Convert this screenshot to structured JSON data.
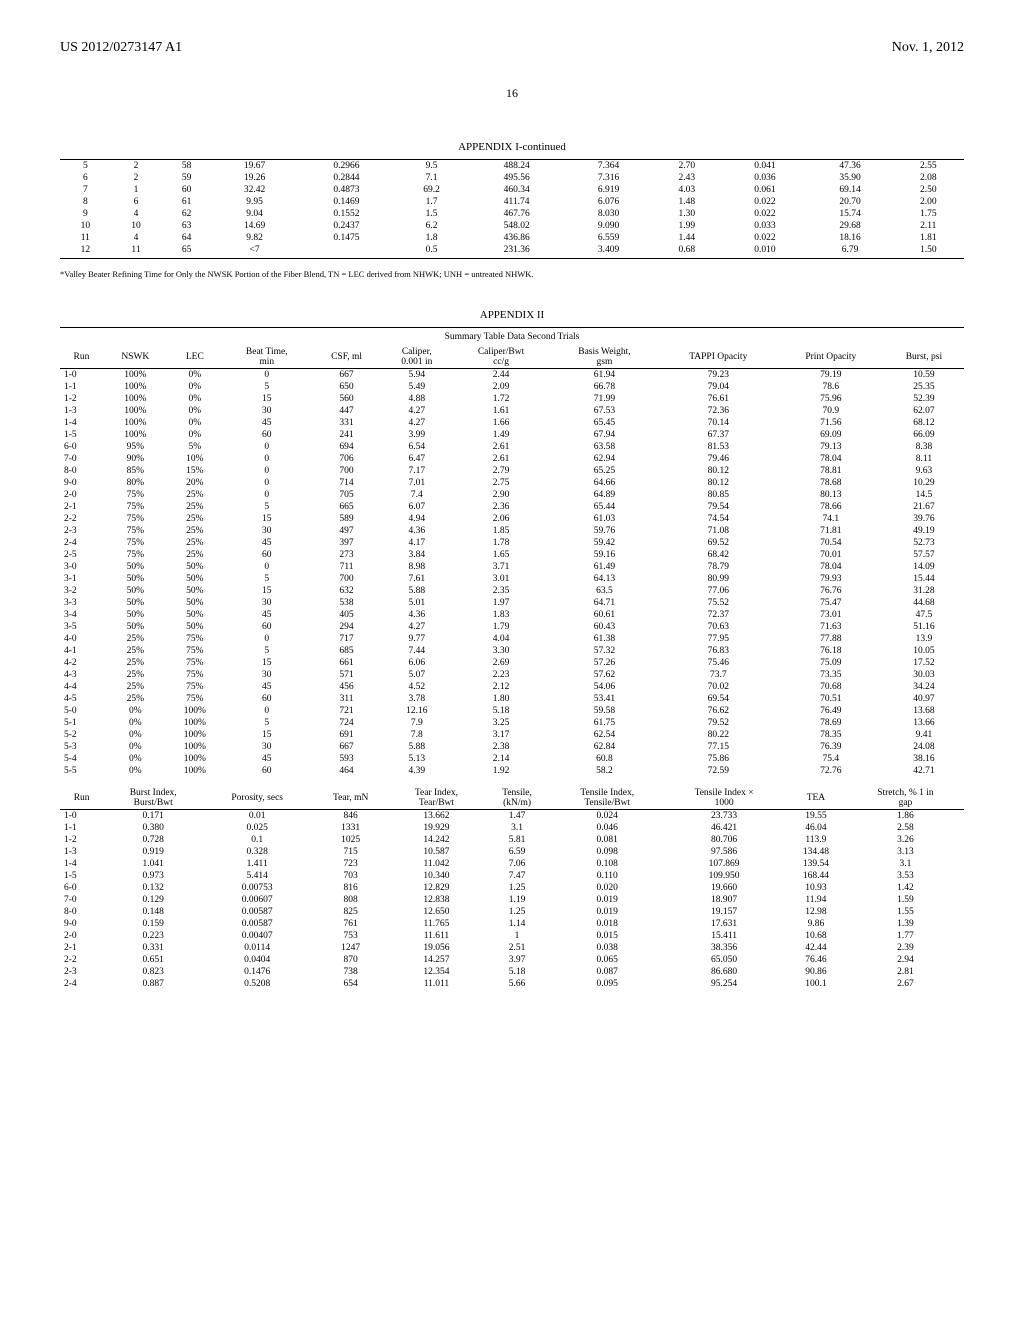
{
  "header": {
    "pub": "US 2012/0273147 A1",
    "date": "Nov. 1, 2012"
  },
  "page_number": "16",
  "appendix1": {
    "title": "APPENDIX I-continued",
    "rows": [
      [
        "5",
        "2",
        "58",
        "19.67",
        "0.2966",
        "9.5",
        "488.24",
        "7.364",
        "2.70",
        "0.041",
        "47.36",
        "2.55"
      ],
      [
        "6",
        "2",
        "59",
        "19.26",
        "0.2844",
        "7.1",
        "495.56",
        "7.316",
        "2.43",
        "0.036",
        "35.90",
        "2.08"
      ],
      [
        "7",
        "1",
        "60",
        "32.42",
        "0.4873",
        "69.2",
        "460.34",
        "6.919",
        "4.03",
        "0.061",
        "69.14",
        "2.50"
      ],
      [
        "8",
        "6",
        "61",
        "9.95",
        "0.1469",
        "1.7",
        "411.74",
        "6.076",
        "1.48",
        "0.022",
        "20.70",
        "2.00"
      ],
      [
        "9",
        "4",
        "62",
        "9.04",
        "0.1552",
        "1.5",
        "467.76",
        "8.030",
        "1.30",
        "0.022",
        "15.74",
        "1.75"
      ],
      [
        "10",
        "10",
        "63",
        "14.69",
        "0.2437",
        "6.2",
        "548.02",
        "9.090",
        "1.99",
        "0.033",
        "29.68",
        "2.11"
      ],
      [
        "11",
        "4",
        "64",
        "9.82",
        "0.1475",
        "1.8",
        "436.86",
        "6.559",
        "1.44",
        "0.022",
        "18.16",
        "1.81"
      ],
      [
        "12",
        "11",
        "65",
        "<7",
        "",
        "0.5",
        "231.36",
        "3.409",
        "0.68",
        "0.010",
        "6.79",
        "1.50"
      ]
    ],
    "footnote": "*Valley Beater Refining Time for Only the NWSK Portion of the Fiber Blend, TN = LEC derived from NHWK; UNH = untreated NHWK."
  },
  "appendix2": {
    "title": "APPENDIX II",
    "subtitle": "Summary Table Data Second Trials",
    "columns_a": [
      "Run",
      "NSWK",
      "LEC",
      "Beat Time,\nmin",
      "CSF, ml",
      "Caliper,\n0.001 in",
      "Caliper/Bwt\ncc/g",
      "Basis Weight,\ngsm",
      "TAPPI Opacity",
      "Print Opacity",
      "Burst, psi"
    ],
    "rows_a": [
      [
        "1-0",
        "100%",
        "0%",
        "0",
        "667",
        "5.94",
        "2.44",
        "61.94",
        "79.23",
        "79.19",
        "10.59"
      ],
      [
        "1-1",
        "100%",
        "0%",
        "5",
        "650",
        "5.49",
        "2.09",
        "66.78",
        "79.04",
        "78.6",
        "25.35"
      ],
      [
        "1-2",
        "100%",
        "0%",
        "15",
        "560",
        "4.88",
        "1.72",
        "71.99",
        "76.61",
        "75.96",
        "52.39"
      ],
      [
        "1-3",
        "100%",
        "0%",
        "30",
        "447",
        "4.27",
        "1.61",
        "67.53",
        "72.36",
        "70.9",
        "62.07"
      ],
      [
        "1-4",
        "100%",
        "0%",
        "45",
        "331",
        "4.27",
        "1.66",
        "65.45",
        "70.14",
        "71.56",
        "68.12"
      ],
      [
        "1-5",
        "100%",
        "0%",
        "60",
        "241",
        "3.99",
        "1.49",
        "67.94",
        "67.37",
        "69.09",
        "66.09"
      ],
      [
        "6-0",
        "95%",
        "5%",
        "0",
        "694",
        "6.54",
        "2.61",
        "63.58",
        "81.53",
        "79.13",
        "8.38"
      ],
      [
        "7-0",
        "90%",
        "10%",
        "0",
        "706",
        "6.47",
        "2.61",
        "62.94",
        "79.46",
        "78.04",
        "8.11"
      ],
      [
        "8-0",
        "85%",
        "15%",
        "0",
        "700",
        "7.17",
        "2.79",
        "65.25",
        "80.12",
        "78.81",
        "9.63"
      ],
      [
        "9-0",
        "80%",
        "20%",
        "0",
        "714",
        "7.01",
        "2.75",
        "64.66",
        "80.12",
        "78.68",
        "10.29"
      ],
      [
        "2-0",
        "75%",
        "25%",
        "0",
        "705",
        "7.4",
        "2.90",
        "64.89",
        "80.85",
        "80.13",
        "14.5"
      ],
      [
        "2-1",
        "75%",
        "25%",
        "5",
        "665",
        "6.07",
        "2.36",
        "65.44",
        "79.54",
        "78.66",
        "21.67"
      ],
      [
        "2-2",
        "75%",
        "25%",
        "15",
        "589",
        "4.94",
        "2.06",
        "61.03",
        "74.54",
        "74.1",
        "39.76"
      ],
      [
        "2-3",
        "75%",
        "25%",
        "30",
        "497",
        "4.36",
        "1.85",
        "59.76",
        "71.08",
        "71.81",
        "49.19"
      ],
      [
        "2-4",
        "75%",
        "25%",
        "45",
        "397",
        "4.17",
        "1.78",
        "59.42",
        "69.52",
        "70.54",
        "52.73"
      ],
      [
        "2-5",
        "75%",
        "25%",
        "60",
        "273",
        "3.84",
        "1.65",
        "59.16",
        "68.42",
        "70.01",
        "57.57"
      ],
      [
        "3-0",
        "50%",
        "50%",
        "0",
        "711",
        "8.98",
        "3.71",
        "61.49",
        "78.79",
        "78.04",
        "14.09"
      ],
      [
        "3-1",
        "50%",
        "50%",
        "5",
        "700",
        "7.61",
        "3.01",
        "64.13",
        "80.99",
        "79.93",
        "15.44"
      ],
      [
        "3-2",
        "50%",
        "50%",
        "15",
        "632",
        "5.88",
        "2.35",
        "63.5",
        "77.06",
        "76.76",
        "31.28"
      ],
      [
        "3-3",
        "50%",
        "50%",
        "30",
        "538",
        "5.01",
        "1.97",
        "64.71",
        "75.52",
        "75.47",
        "44.68"
      ],
      [
        "3-4",
        "50%",
        "50%",
        "45",
        "405",
        "4.36",
        "1.83",
        "60.61",
        "72.37",
        "73.01",
        "47.5"
      ],
      [
        "3-5",
        "50%",
        "50%",
        "60",
        "294",
        "4.27",
        "1.79",
        "60.43",
        "70.63",
        "71.63",
        "51.16"
      ],
      [
        "4-0",
        "25%",
        "75%",
        "0",
        "717",
        "9.77",
        "4.04",
        "61.38",
        "77.95",
        "77.88",
        "13.9"
      ],
      [
        "4-1",
        "25%",
        "75%",
        "5",
        "685",
        "7.44",
        "3.30",
        "57.32",
        "76.83",
        "76.18",
        "10.05"
      ],
      [
        "4-2",
        "25%",
        "75%",
        "15",
        "661",
        "6.06",
        "2.69",
        "57.26",
        "75.46",
        "75.09",
        "17.52"
      ],
      [
        "4-3",
        "25%",
        "75%",
        "30",
        "571",
        "5.07",
        "2.23",
        "57.62",
        "73.7",
        "73.35",
        "30.03"
      ],
      [
        "4-4",
        "25%",
        "75%",
        "45",
        "456",
        "4.52",
        "2.12",
        "54.06",
        "70.02",
        "70.68",
        "34.24"
      ],
      [
        "4-5",
        "25%",
        "75%",
        "60",
        "311",
        "3.78",
        "1.80",
        "53.41",
        "69.54",
        "70.51",
        "40.97"
      ],
      [
        "5-0",
        "0%",
        "100%",
        "0",
        "721",
        "12.16",
        "5.18",
        "59.58",
        "76.62",
        "76.49",
        "13.68"
      ],
      [
        "5-1",
        "0%",
        "100%",
        "5",
        "724",
        "7.9",
        "3.25",
        "61.75",
        "79.52",
        "78.69",
        "13.66"
      ],
      [
        "5-2",
        "0%",
        "100%",
        "15",
        "691",
        "7.8",
        "3.17",
        "62.54",
        "80.22",
        "78.35",
        "9.41"
      ],
      [
        "5-3",
        "0%",
        "100%",
        "30",
        "667",
        "5.88",
        "2.38",
        "62.84",
        "77.15",
        "76.39",
        "24.08"
      ],
      [
        "5-4",
        "0%",
        "100%",
        "45",
        "593",
        "5.13",
        "2.14",
        "60.8",
        "75.86",
        "75.4",
        "38.16"
      ],
      [
        "5-5",
        "0%",
        "100%",
        "60",
        "464",
        "4.39",
        "1.92",
        "58.2",
        "72.59",
        "72.76",
        "42.71"
      ]
    ],
    "columns_b": [
      "Run",
      "Burst Index,\nBurst/Bwt",
      "Porosity, secs",
      "Tear, mN",
      "Tear Index,\nTear/Bwt",
      "Tensile,\n(kN/m)",
      "Tensile Index,\nTensile/Bwt",
      "Tensile Index ×\n1000",
      "TEA",
      "Stretch, % 1 in\ngap"
    ],
    "rows_b": [
      [
        "1-0",
        "0.171",
        "0.01",
        "846",
        "13.662",
        "1.47",
        "0.024",
        "23.733",
        "19.55",
        "1.86"
      ],
      [
        "1-1",
        "0.380",
        "0.025",
        "1331",
        "19.929",
        "3.1",
        "0.046",
        "46.421",
        "46.04",
        "2.58"
      ],
      [
        "1-2",
        "0.728",
        "0.1",
        "1025",
        "14.242",
        "5.81",
        "0.081",
        "80.706",
        "113.9",
        "3.26"
      ],
      [
        "1-3",
        "0.919",
        "0.328",
        "715",
        "10.587",
        "6.59",
        "0.098",
        "97.586",
        "134.48",
        "3.13"
      ],
      [
        "1-4",
        "1.041",
        "1.411",
        "723",
        "11.042",
        "7.06",
        "0.108",
        "107.869",
        "139.54",
        "3.1"
      ],
      [
        "1-5",
        "0.973",
        "5.414",
        "703",
        "10.340",
        "7.47",
        "0.110",
        "109.950",
        "168.44",
        "3.53"
      ],
      [
        "6-0",
        "0.132",
        "0.00753",
        "816",
        "12.829",
        "1.25",
        "0.020",
        "19.660",
        "10.93",
        "1.42"
      ],
      [
        "7-0",
        "0.129",
        "0.00607",
        "808",
        "12.838",
        "1.19",
        "0.019",
        "18.907",
        "11.94",
        "1.59"
      ],
      [
        "8-0",
        "0.148",
        "0.00587",
        "825",
        "12.650",
        "1.25",
        "0.019",
        "19.157",
        "12.98",
        "1.55"
      ],
      [
        "9-0",
        "0.159",
        "0.00587",
        "761",
        "11.765",
        "1.14",
        "0.018",
        "17.631",
        "9.86",
        "1.39"
      ],
      [
        "2-0",
        "0.223",
        "0.00407",
        "753",
        "11.611",
        "1",
        "0.015",
        "15.411",
        "10.68",
        "1.77"
      ],
      [
        "2-1",
        "0.331",
        "0.0114",
        "1247",
        "19.056",
        "2.51",
        "0.038",
        "38.356",
        "42.44",
        "2.39"
      ],
      [
        "2-2",
        "0.651",
        "0.0404",
        "870",
        "14.257",
        "3.97",
        "0.065",
        "65.050",
        "76.46",
        "2.94"
      ],
      [
        "2-3",
        "0.823",
        "0.1476",
        "738",
        "12.354",
        "5.18",
        "0.087",
        "86.680",
        "90.86",
        "2.81"
      ],
      [
        "2-4",
        "0.887",
        "0.5208",
        "654",
        "11.011",
        "5.66",
        "0.095",
        "95.254",
        "100.1",
        "2.67"
      ]
    ]
  }
}
